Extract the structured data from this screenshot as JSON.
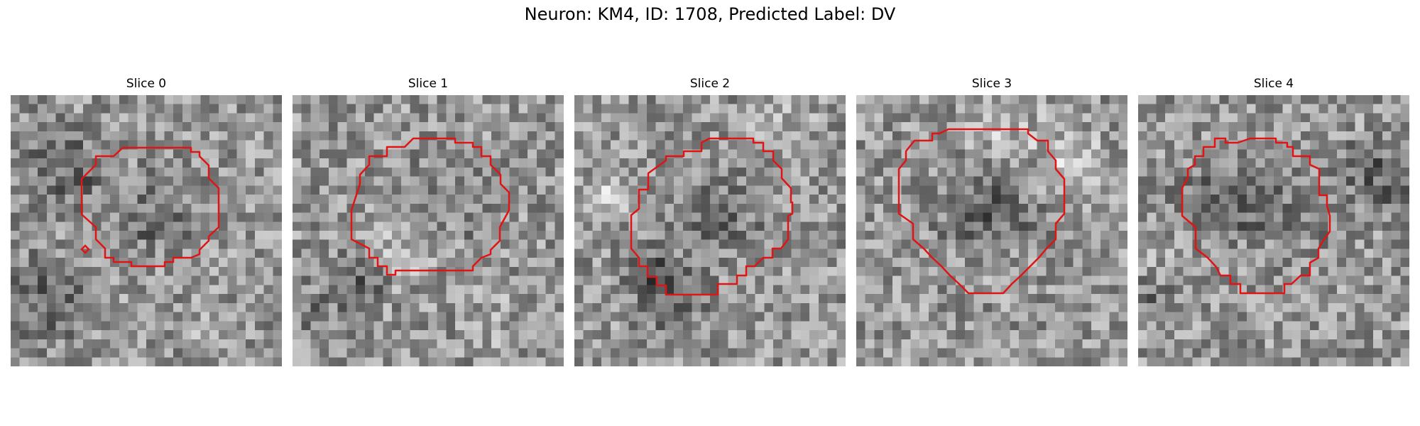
{
  "figure": {
    "title": "Neuron: KM4, ID: 1708, Predicted Label: DV"
  },
  "panels": [
    {
      "title": "Slice 0",
      "seed": 11,
      "blob": 0.45
    },
    {
      "title": "Slice 1",
      "seed": 23,
      "blob": 0.4
    },
    {
      "title": "Slice 2",
      "seed": 37,
      "blob": 0.5
    },
    {
      "title": "Slice 3",
      "seed": 51,
      "blob": 0.6
    },
    {
      "title": "Slice 4",
      "seed": 67,
      "blob": 0.5
    }
  ],
  "colors": {
    "contour": "#e01414",
    "background": "#ffffff"
  },
  "image_grid": 30
}
